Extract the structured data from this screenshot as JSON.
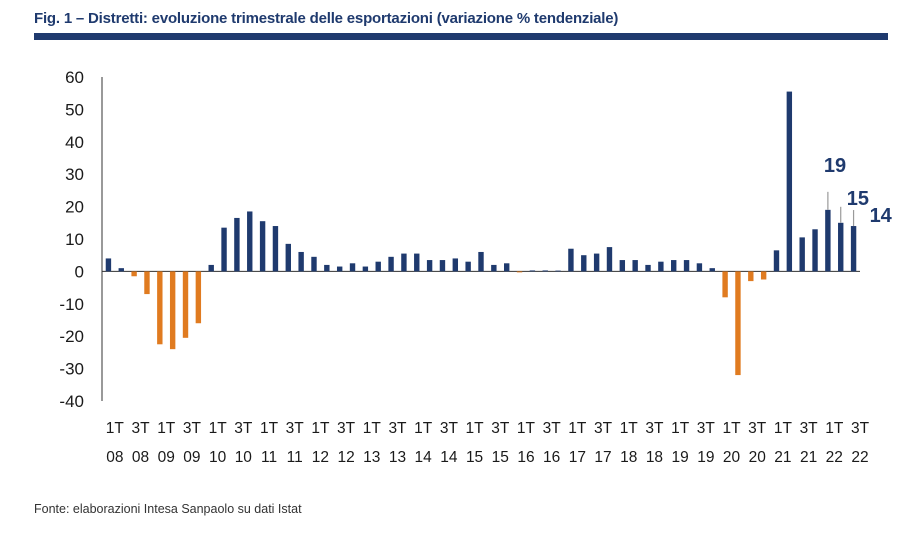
{
  "title": "Fig. 1 – Distretti: evoluzione trimestrale delle esportazioni (variazione % tendenziale)",
  "source": "Fonte: elaborazioni Intesa Sanpaolo su dati Istat",
  "chart_data": {
    "type": "bar",
    "title": "Fig. 1 – Distretti: evoluzione trimestrale delle esportazioni (variazione % tendenziale)",
    "xlabel": "",
    "ylabel": "",
    "ylim": [
      -40,
      60
    ],
    "yticks": [
      "60",
      "50",
      "40",
      "30",
      "20",
      "10",
      "0",
      "-10",
      "-20",
      "-30",
      "-40"
    ],
    "x_tick_labels": [
      {
        "top": "1T",
        "bottom": "08"
      },
      {
        "top": "3T",
        "bottom": "08"
      },
      {
        "top": "1T",
        "bottom": "09"
      },
      {
        "top": "3T",
        "bottom": "09"
      },
      {
        "top": "1T",
        "bottom": "10"
      },
      {
        "top": "3T",
        "bottom": "10"
      },
      {
        "top": "1T",
        "bottom": "11"
      },
      {
        "top": "3T",
        "bottom": "11"
      },
      {
        "top": "1T",
        "bottom": "12"
      },
      {
        "top": "3T",
        "bottom": "12"
      },
      {
        "top": "1T",
        "bottom": "13"
      },
      {
        "top": "3T",
        "bottom": "13"
      },
      {
        "top": "1T",
        "bottom": "14"
      },
      {
        "top": "3T",
        "bottom": "14"
      },
      {
        "top": "1T",
        "bottom": "15"
      },
      {
        "top": "3T",
        "bottom": "15"
      },
      {
        "top": "1T",
        "bottom": "16"
      },
      {
        "top": "3T",
        "bottom": "16"
      },
      {
        "top": "1T",
        "bottom": "17"
      },
      {
        "top": "3T",
        "bottom": "17"
      },
      {
        "top": "1T",
        "bottom": "18"
      },
      {
        "top": "3T",
        "bottom": "18"
      },
      {
        "top": "1T",
        "bottom": "19"
      },
      {
        "top": "3T",
        "bottom": "19"
      },
      {
        "top": "1T",
        "bottom": "20"
      },
      {
        "top": "3T",
        "bottom": "20"
      },
      {
        "top": "1T",
        "bottom": "21"
      },
      {
        "top": "3T",
        "bottom": "21"
      },
      {
        "top": "1T",
        "bottom": "22"
      },
      {
        "top": "3T",
        "bottom": "22"
      }
    ],
    "categories": [
      "1T 08",
      "2T 08",
      "3T 08",
      "4T 08",
      "1T 09",
      "2T 09",
      "3T 09",
      "4T 09",
      "1T 10",
      "2T 10",
      "3T 10",
      "4T 10",
      "1T 11",
      "2T 11",
      "3T 11",
      "4T 11",
      "1T 12",
      "2T 12",
      "3T 12",
      "4T 12",
      "1T 13",
      "2T 13",
      "3T 13",
      "4T 13",
      "1T 14",
      "2T 14",
      "3T 14",
      "4T 14",
      "1T 15",
      "2T 15",
      "3T 15",
      "4T 15",
      "1T 16",
      "2T 16",
      "3T 16",
      "4T 16",
      "1T 17",
      "2T 17",
      "3T 17",
      "4T 17",
      "1T 18",
      "2T 18",
      "3T 18",
      "4T 18",
      "1T 19",
      "2T 19",
      "3T 19",
      "4T 19",
      "1T 20",
      "2T 20",
      "3T 20",
      "4T 20",
      "1T 21",
      "2T 21",
      "3T 21",
      "4T 21",
      "1T 22",
      "2T 22",
      "3T 22"
    ],
    "values": [
      4,
      1,
      -1.5,
      -7,
      -22.5,
      -24,
      -20.5,
      -16,
      2,
      13.5,
      16.5,
      18.5,
      15.5,
      14,
      8.5,
      6,
      4.5,
      2,
      1.5,
      2.5,
      1.5,
      3,
      4.5,
      5.5,
      5.5,
      3.5,
      3.5,
      4,
      3,
      6,
      2,
      2.5,
      -0.3,
      0.3,
      0.3,
      0,
      7,
      5,
      5.5,
      7.5,
      3.5,
      3.5,
      2,
      3,
      3.5,
      3.5,
      2.5,
      1,
      -8,
      -32,
      -3,
      -2.5,
      6.5,
      55.5,
      10.5,
      13,
      19,
      15,
      14
    ],
    "colors": {
      "positive": "#1f3a6e",
      "negative": "#e07b20",
      "annotation_line": "#9a9a9a"
    },
    "annotations": [
      {
        "label": "19",
        "index": 56
      },
      {
        "label": "15",
        "index": 57
      },
      {
        "label": "14",
        "index": 58
      }
    ]
  }
}
